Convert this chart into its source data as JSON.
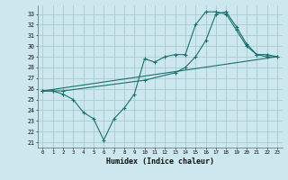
{
  "xlabel": "Humidex (Indice chaleur)",
  "bg_color": "#cce8ee",
  "grid_color": "#aacccc",
  "line_color": "#1a7070",
  "xlim": [
    -0.5,
    23.5
  ],
  "ylim": [
    20.5,
    33.8
  ],
  "yticks": [
    21,
    22,
    23,
    24,
    25,
    26,
    27,
    28,
    29,
    30,
    31,
    32,
    33
  ],
  "xticks": [
    0,
    1,
    2,
    3,
    4,
    5,
    6,
    7,
    8,
    9,
    10,
    11,
    12,
    13,
    14,
    15,
    16,
    17,
    18,
    19,
    20,
    21,
    22,
    23
  ],
  "line1_x": [
    0,
    1,
    2,
    3,
    4,
    5,
    6,
    7,
    8,
    9,
    10,
    11,
    12,
    13,
    14,
    15,
    16,
    17,
    18,
    19,
    20,
    21,
    22,
    23
  ],
  "line1_y": [
    25.8,
    25.8,
    25.5,
    25.0,
    23.8,
    23.2,
    21.2,
    23.2,
    24.2,
    25.5,
    28.8,
    28.5,
    29.0,
    29.2,
    29.2,
    32.0,
    33.2,
    33.2,
    33.0,
    31.5,
    30.0,
    29.2,
    29.2,
    29.0
  ],
  "line2_x": [
    0,
    23
  ],
  "line2_y": [
    25.8,
    29.0
  ],
  "line3_x": [
    0,
    1,
    2,
    10,
    13,
    14,
    15,
    16,
    17,
    18,
    19,
    20,
    21,
    22,
    23
  ],
  "line3_y": [
    25.8,
    25.8,
    25.8,
    26.8,
    27.5,
    28.0,
    29.0,
    30.5,
    33.0,
    33.2,
    31.8,
    30.2,
    29.2,
    29.0,
    29.0
  ]
}
